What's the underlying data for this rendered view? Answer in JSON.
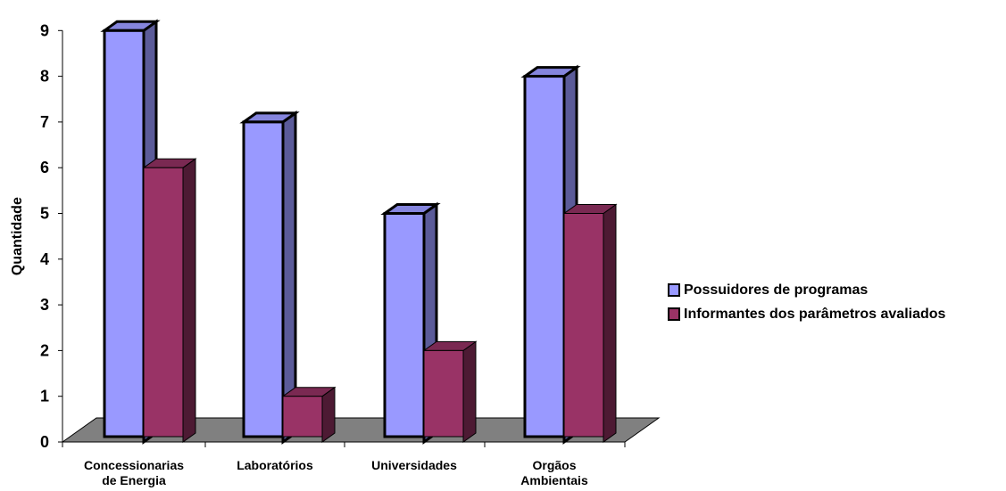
{
  "chart_data": {
    "type": "bar",
    "title": "",
    "xlabel": "",
    "ylabel": "Quantidade",
    "categories": [
      [
        "Concessionarias",
        "de Energia"
      ],
      [
        "Laboratórios"
      ],
      [
        "Universidades"
      ],
      [
        "Orgãos",
        "Ambientais"
      ]
    ],
    "series": [
      {
        "name": "Possuidores de programas",
        "values": [
          9,
          7,
          5,
          8
        ],
        "color": "#9999ff",
        "side_color": "#5b5b99",
        "top_color": "#8585de"
      },
      {
        "name": "Informantes dos parâmetros avaliados",
        "values": [
          6,
          1,
          2,
          5
        ],
        "color": "#993366",
        "side_color": "#4d1a33",
        "top_color": "#7a2952"
      }
    ],
    "ylim": [
      0,
      9
    ],
    "yticks": [
      "0",
      "1",
      "2",
      "3",
      "4",
      "5",
      "6",
      "7",
      "8",
      "9"
    ],
    "grid": false,
    "three_d": true,
    "floor_color": "#808080",
    "legend_position": "right"
  }
}
